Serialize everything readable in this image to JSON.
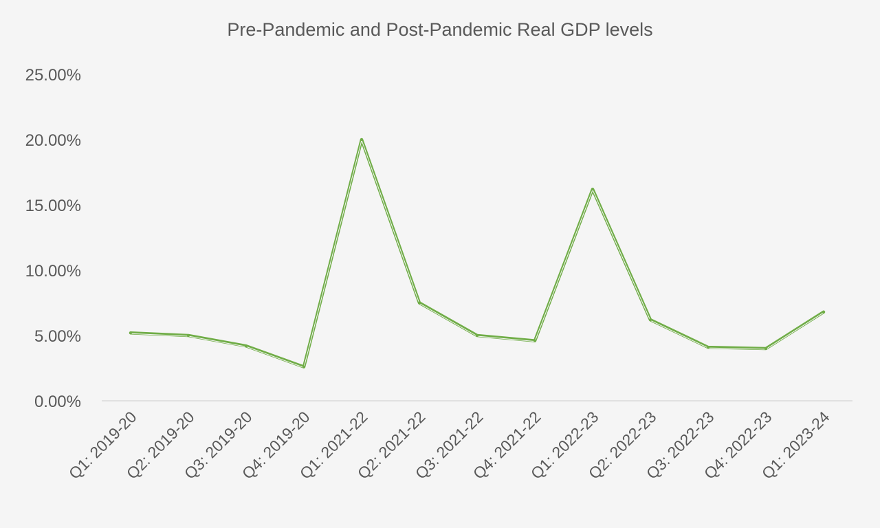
{
  "chart_data": {
    "type": "line",
    "title": "Pre-Pandemic and Post-Pandemic Real GDP levels",
    "xlabel": "",
    "ylabel": "",
    "ylim": [
      0,
      25
    ],
    "yticks": [
      "0.00%",
      "5.00%",
      "10.00%",
      "15.00%",
      "20.00%",
      "25.00%"
    ],
    "ytick_values": [
      0,
      5,
      10,
      15,
      20,
      25
    ],
    "grid": false,
    "legend": "none",
    "categories": [
      "Q1: 2019-20",
      "Q2: 2019-20",
      "Q3: 2019-20",
      "Q4: 2019-20",
      "Q1: 2021-22",
      "Q2: 2021-22",
      "Q3: 2021-22",
      "Q4: 2021-22",
      "Q1: 2022-23",
      "Q2: 2022-23",
      "Q3: 2022-23",
      "Q4: 2022-23",
      "Q1: 2023-24"
    ],
    "series": [
      {
        "values": [
          5.2,
          5.0,
          4.2,
          2.6,
          20.0,
          7.5,
          5.0,
          4.6,
          16.2,
          6.2,
          4.1,
          4.0,
          6.8
        ],
        "color": "#70ad47"
      }
    ],
    "axis_color": "#d9d9d9",
    "background": "#f5f5f5"
  }
}
